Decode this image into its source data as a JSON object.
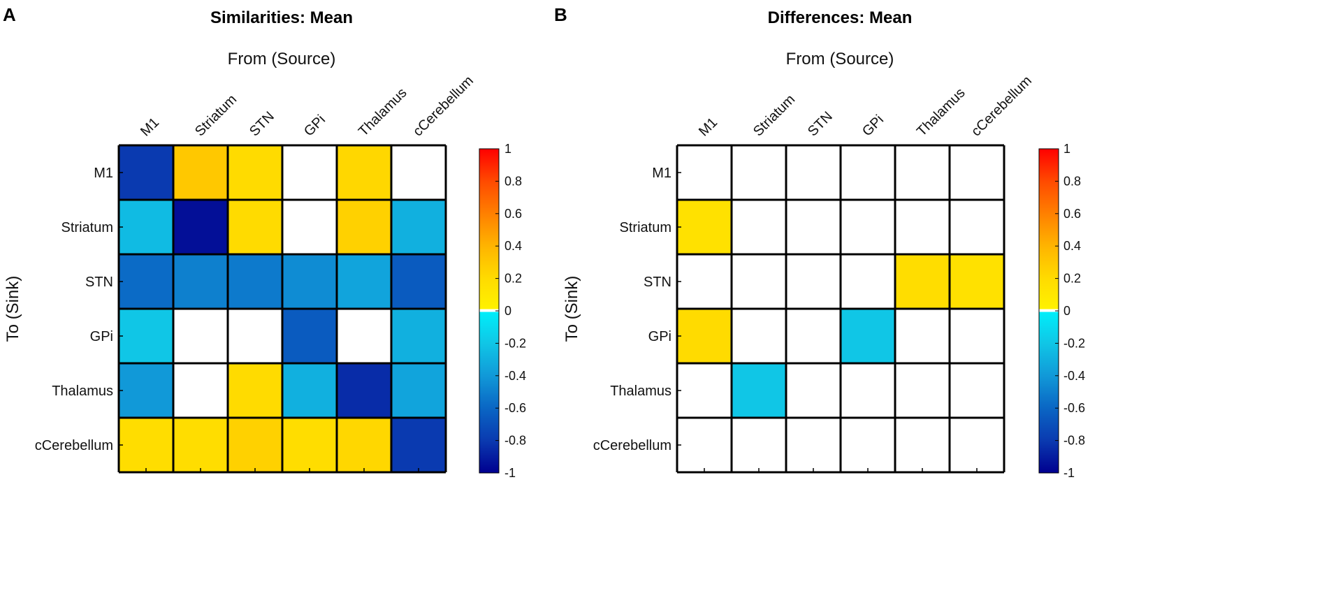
{
  "chart_data": [
    {
      "type": "heatmap",
      "panel_label": "A",
      "title": "Similarities: Mean",
      "xlabel": "From (Source)",
      "ylabel": "To (Sink)",
      "x_categories": [
        "M1",
        "Striatum",
        "STN",
        "GPi",
        "Thalamus",
        "cCerebellum"
      ],
      "y_categories": [
        "M1",
        "Striatum",
        "STN",
        "GPi",
        "Thalamus",
        "cCerebellum"
      ],
      "values": [
        [
          -0.8,
          0.3,
          0.2,
          null,
          0.22,
          null
        ],
        [
          -0.25,
          -0.95,
          0.2,
          null,
          0.25,
          -0.3
        ],
        [
          -0.58,
          -0.5,
          -0.52,
          -0.45,
          -0.35,
          -0.65
        ],
        [
          -0.2,
          null,
          null,
          -0.65,
          null,
          -0.3
        ],
        [
          -0.4,
          null,
          0.2,
          -0.3,
          -0.85,
          -0.35
        ],
        [
          0.18,
          0.18,
          0.25,
          0.18,
          0.22,
          -0.8
        ]
      ],
      "colorbar": {
        "range": [
          -1,
          1
        ],
        "ticks": [
          "1",
          "0.8",
          "0.6",
          "0.4",
          "0.2",
          "0",
          "-0.2",
          "-0.4",
          "-0.6",
          "-0.8",
          "-1"
        ]
      }
    },
    {
      "type": "heatmap",
      "panel_label": "B",
      "title": "Differences: Mean",
      "xlabel": "From (Source)",
      "ylabel": "To (Sink)",
      "x_categories": [
        "M1",
        "Striatum",
        "STN",
        "GPi",
        "Thalamus",
        "cCerebellum"
      ],
      "y_categories": [
        "M1",
        "Striatum",
        "STN",
        "GPi",
        "Thalamus",
        "cCerebellum"
      ],
      "values": [
        [
          null,
          null,
          null,
          null,
          null,
          null
        ],
        [
          0.15,
          null,
          null,
          null,
          null,
          null
        ],
        [
          null,
          null,
          null,
          null,
          0.18,
          0.15
        ],
        [
          0.2,
          null,
          null,
          -0.2,
          null,
          null
        ],
        [
          null,
          -0.2,
          null,
          null,
          null,
          null
        ],
        [
          null,
          null,
          null,
          null,
          null,
          null
        ]
      ],
      "colorbar": {
        "range": [
          -1,
          1
        ],
        "ticks": [
          "1",
          "0.8",
          "0.6",
          "0.4",
          "0.2",
          "0",
          "-0.2",
          "-0.4",
          "-0.6",
          "-0.8",
          "-1"
        ]
      }
    }
  ]
}
